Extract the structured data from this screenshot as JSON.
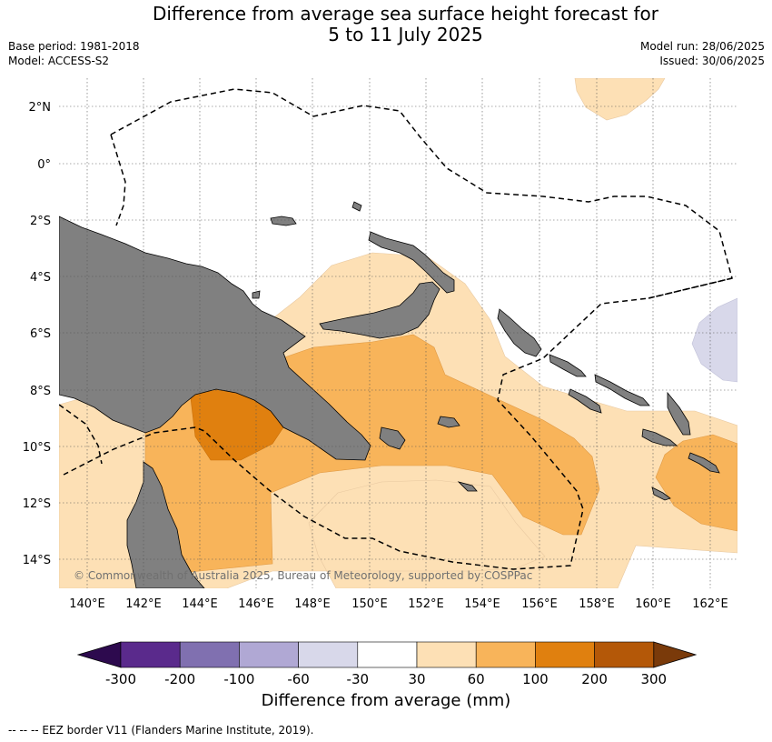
{
  "header": {
    "title_line1": "Difference from average sea surface height forecast for",
    "title_line2": "5 to 11 July 2025",
    "base_period": "Base period: 1981-2018",
    "model": "Model: ACCESS-S2",
    "model_run": "Model run: 28/06/2025",
    "issued": "Issued: 30/06/2025"
  },
  "map": {
    "lat_labels": [
      "2°N",
      "0°",
      "2°S",
      "4°S",
      "6°S",
      "8°S",
      "10°S",
      "12°S",
      "14°S"
    ],
    "lon_labels": [
      "140°E",
      "142°E",
      "144°E",
      "146°E",
      "148°E",
      "150°E",
      "152°E",
      "154°E",
      "156°E",
      "158°E",
      "160°E",
      "162°E"
    ],
    "copyright": "© Commonwealth of Australia 2025, Bureau of Meteorology, supported by COSPPac",
    "land_color": "#808080",
    "eez_border_style": "dashed"
  },
  "colorbar": {
    "tick_labels": [
      "-300",
      "-200",
      "-100",
      "-60",
      "-30",
      "30",
      "60",
      "100",
      "200",
      "300"
    ],
    "colors": [
      "#5a2a8c",
      "#8070b0",
      "#b0a8d4",
      "#d8d8ea",
      "#ffffff",
      "#fde0b5",
      "#f8b45a",
      "#e0800f",
      "#b45808"
    ],
    "under_color": "#2d0a4e",
    "over_color": "#7a3a0a",
    "label": "Difference from average (mm)"
  },
  "footnote": "--  --  -- EEZ border V11 (Flanders Marine Institute, 2019)."
}
